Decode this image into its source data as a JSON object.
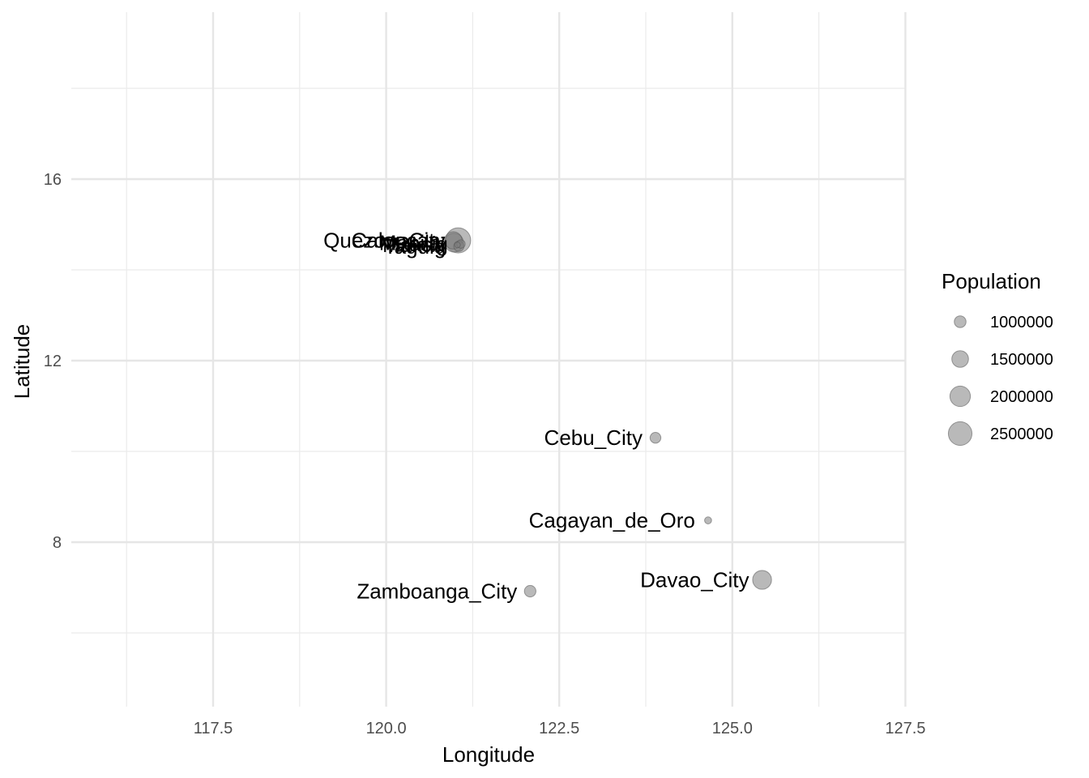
{
  "chart_data": {
    "type": "scatter",
    "xlabel": "Longitude",
    "ylabel": "Latitude",
    "xlim": [
      115.6,
      127.6
    ],
    "ylim": [
      4.8,
      19.7
    ],
    "x_ticks": [
      117.5,
      120.0,
      122.5,
      125.0,
      127.5
    ],
    "x_tick_labels": [
      "117.5",
      "120.0",
      "122.5",
      "125.0",
      "127.5"
    ],
    "y_ticks": [
      8,
      12,
      16
    ],
    "y_tick_labels": [
      "8",
      "12",
      "16"
    ],
    "grid": true,
    "point_color": "#7f7f7f",
    "point_opacity": 0.55,
    "points": [
      {
        "label": "Quezon_City",
        "x": 121.04,
        "y": 14.65,
        "population": 2760000
      },
      {
        "label": "Manila",
        "x": 120.98,
        "y": 14.6,
        "population": 1780000
      },
      {
        "label": "Caloocan",
        "x": 120.97,
        "y": 14.65,
        "population": 1580000
      },
      {
        "label": "Pasig",
        "x": 121.08,
        "y": 14.57,
        "population": 760000
      },
      {
        "label": "Taguig",
        "x": 121.05,
        "y": 14.52,
        "population": 880000
      },
      {
        "label": "Makati",
        "x": 121.03,
        "y": 14.55,
        "population": 620000
      },
      {
        "label": "Cebu_City",
        "x": 123.89,
        "y": 10.3,
        "population": 920000
      },
      {
        "label": "Cagayan_de_Oro",
        "x": 124.65,
        "y": 8.48,
        "population": 680000
      },
      {
        "label": "Zamboanga_City",
        "x": 122.08,
        "y": 6.92,
        "population": 980000
      },
      {
        "label": "Davao_City",
        "x": 125.43,
        "y": 7.17,
        "population": 1780000
      }
    ],
    "legend": {
      "title": "Population",
      "position": "right",
      "breaks": [
        1000000,
        1500000,
        2000000,
        2500000
      ],
      "labels": [
        "1000000",
        "1500000",
        "2000000",
        "2500000"
      ]
    }
  }
}
